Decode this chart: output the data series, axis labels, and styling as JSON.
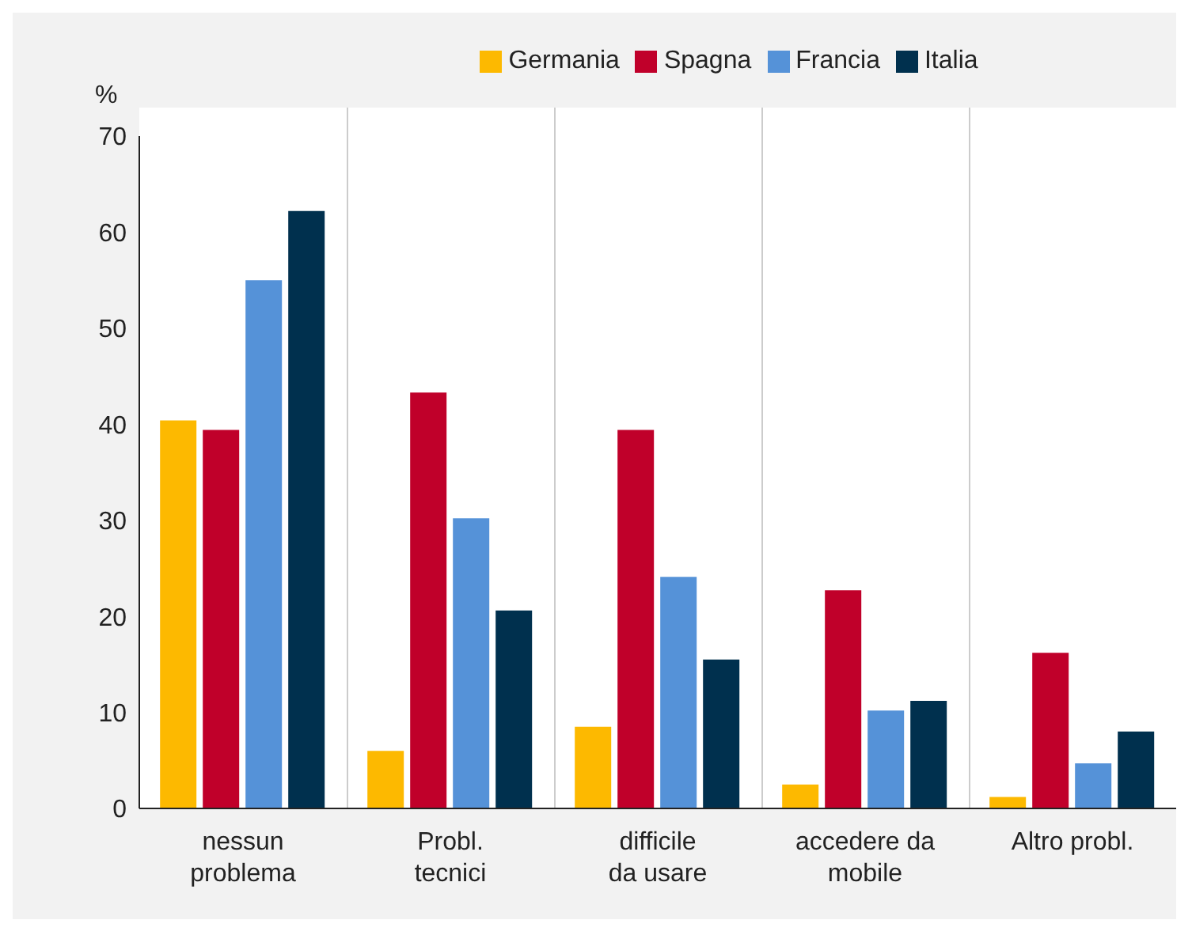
{
  "chart_data": {
    "type": "bar",
    "ylabel": "%",
    "categories": [
      "nessun\nproblema",
      "Probl.\ntecnici",
      "difficile\nda usare",
      "accedere da\nmobile",
      "Altro probl."
    ],
    "series": [
      {
        "name": "Germania",
        "color": "#fdb900",
        "values": [
          40.4,
          6.0,
          8.5,
          2.5,
          1.2
        ]
      },
      {
        "name": "Spagna",
        "color": "#c0002a",
        "values": [
          39.4,
          43.3,
          39.4,
          22.7,
          16.2
        ]
      },
      {
        "name": "Francia",
        "color": "#5592d8",
        "values": [
          55.0,
          30.2,
          24.1,
          10.2,
          4.7
        ]
      },
      {
        "name": "Italia",
        "color": "#00304e",
        "values": [
          62.2,
          20.6,
          15.5,
          11.2,
          8.0
        ]
      }
    ],
    "ylim": [
      0,
      70
    ],
    "yticks": [
      0,
      10,
      20,
      30,
      40,
      50,
      60,
      70
    ],
    "legend": "top"
  }
}
